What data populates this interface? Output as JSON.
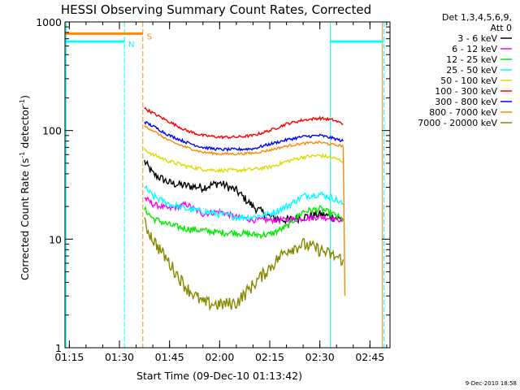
{
  "chart_data": {
    "type": "line",
    "title": "HESSI Observing Summary Count Rates, Corrected",
    "xlabel": "Start Time (09-Dec-10 01:13:42)",
    "ylabel_main": "Corrected Count Rate (s",
    "ylabel_sup1": "-1",
    "ylabel_mid": " detector",
    "ylabel_sup2": "-1",
    "ylabel_end": ")",
    "y_scale": "log",
    "ylim": [
      1,
      1000
    ],
    "xlim": [
      "01:13:42",
      "02:51:00"
    ],
    "x_ticks": [
      "01:15",
      "01:30",
      "01:45",
      "02:00",
      "02:15",
      "02:30",
      "02:45"
    ],
    "y_ticks": [
      "1",
      "10",
      "100",
      "1000"
    ],
    "legend_title_1": "Det 1,3,4,5,6,9,",
    "legend_title_2": "Att 0",
    "legend_position": "right",
    "timestamp": "9-Dec-2010 18:58",
    "series": [
      {
        "name": "3 - 6 keV",
        "color": "#000000",
        "points": [
          [
            "01:37:30",
            52
          ],
          [
            "01:40:00",
            40
          ],
          [
            "01:45:00",
            33
          ],
          [
            "01:50:00",
            31
          ],
          [
            "01:55:00",
            30
          ],
          [
            "02:00:00",
            33
          ],
          [
            "02:05:00",
            28
          ],
          [
            "02:10:00",
            20
          ],
          [
            "02:15:00",
            16
          ],
          [
            "02:20:00",
            15
          ],
          [
            "02:25:00",
            16
          ],
          [
            "02:30:00",
            17
          ],
          [
            "02:34:00",
            16
          ],
          [
            "02:37:00",
            15
          ]
        ]
      },
      {
        "name": "6 - 12 keV",
        "color": "#ff00ff",
        "points": [
          [
            "01:37:30",
            24
          ],
          [
            "01:40:00",
            21
          ],
          [
            "01:45:00",
            19
          ],
          [
            "01:50:00",
            21
          ],
          [
            "01:55:00",
            17
          ],
          [
            "02:00:00",
            18
          ],
          [
            "02:05:00",
            16
          ],
          [
            "02:10:00",
            15
          ],
          [
            "02:15:00",
            15
          ],
          [
            "02:20:00",
            15
          ],
          [
            "02:25:00",
            15.5
          ],
          [
            "02:30:00",
            16
          ],
          [
            "02:34:00",
            15.5
          ],
          [
            "02:37:00",
            15
          ]
        ]
      },
      {
        "name": "12 - 25 keV",
        "color": "#00ee00",
        "points": [
          [
            "01:37:30",
            19
          ],
          [
            "01:40:00",
            15.5
          ],
          [
            "01:45:00",
            13.5
          ],
          [
            "01:50:00",
            12.5
          ],
          [
            "01:55:00",
            12
          ],
          [
            "02:00:00",
            11.5
          ],
          [
            "02:05:00",
            11.5
          ],
          [
            "02:10:00",
            11
          ],
          [
            "02:15:00",
            11
          ],
          [
            "02:20:00",
            13
          ],
          [
            "02:25:00",
            18
          ],
          [
            "02:30:00",
            19
          ],
          [
            "02:34:00",
            17
          ],
          [
            "02:37:00",
            15
          ]
        ]
      },
      {
        "name": "25 - 50 keV",
        "color": "#00ffff",
        "points": [
          [
            "01:37:30",
            30
          ],
          [
            "01:40:00",
            25
          ],
          [
            "01:45:00",
            21
          ],
          [
            "01:50:00",
            19
          ],
          [
            "01:55:00",
            18
          ],
          [
            "02:00:00",
            17
          ],
          [
            "02:05:00",
            16
          ],
          [
            "02:10:00",
            16
          ],
          [
            "02:15:00",
            17
          ],
          [
            "02:20:00",
            20
          ],
          [
            "02:25:00",
            25
          ],
          [
            "02:30:00",
            26
          ],
          [
            "02:34:00",
            24
          ],
          [
            "02:37:00",
            21
          ]
        ]
      },
      {
        "name": "50 - 100 keV",
        "color": "#dddd00",
        "points": [
          [
            "01:37:30",
            67
          ],
          [
            "01:40:00",
            60
          ],
          [
            "01:45:00",
            52
          ],
          [
            "01:50:00",
            47
          ],
          [
            "01:55:00",
            44
          ],
          [
            "02:00:00",
            43
          ],
          [
            "02:05:00",
            43
          ],
          [
            "02:10:00",
            44
          ],
          [
            "02:15:00",
            46
          ],
          [
            "02:20:00",
            52
          ],
          [
            "02:25:00",
            57
          ],
          [
            "02:30:00",
            59
          ],
          [
            "02:34:00",
            56
          ],
          [
            "02:37:00",
            52
          ]
        ]
      },
      {
        "name": "100 - 300 keV",
        "color": "#ff0000",
        "points": [
          [
            "01:37:30",
            160
          ],
          [
            "01:40:00",
            145
          ],
          [
            "01:45:00",
            120
          ],
          [
            "01:50:00",
            100
          ],
          [
            "01:55:00",
            90
          ],
          [
            "02:00:00",
            87
          ],
          [
            "02:05:00",
            87
          ],
          [
            "02:10:00",
            90
          ],
          [
            "02:15:00",
            100
          ],
          [
            "02:20:00",
            115
          ],
          [
            "02:25:00",
            125
          ],
          [
            "02:30:00",
            130
          ],
          [
            "02:34:00",
            125
          ],
          [
            "02:37:00",
            115
          ]
        ]
      },
      {
        "name": "300 - 800 keV",
        "color": "#0000ff",
        "points": [
          [
            "01:37:30",
            120
          ],
          [
            "01:40:00",
            110
          ],
          [
            "01:45:00",
            90
          ],
          [
            "01:50:00",
            78
          ],
          [
            "01:55:00",
            70
          ],
          [
            "02:00:00",
            67
          ],
          [
            "02:05:00",
            67
          ],
          [
            "02:10:00",
            68
          ],
          [
            "02:15:00",
            75
          ],
          [
            "02:20:00",
            82
          ],
          [
            "02:25:00",
            88
          ],
          [
            "02:30:00",
            90
          ],
          [
            "02:34:00",
            85
          ],
          [
            "02:37:00",
            80
          ]
        ]
      },
      {
        "name": "800 - 7000 keV",
        "color": "#ff8800",
        "points": [
          [
            "01:37:30",
            110
          ],
          [
            "01:40:00",
            100
          ],
          [
            "01:45:00",
            80
          ],
          [
            "01:50:00",
            70
          ],
          [
            "01:55:00",
            63
          ],
          [
            "02:00:00",
            61
          ],
          [
            "02:05:00",
            61
          ],
          [
            "02:10:00",
            62
          ],
          [
            "02:15:00",
            66
          ],
          [
            "02:20:00",
            72
          ],
          [
            "02:25:00",
            76
          ],
          [
            "02:30:00",
            78
          ],
          [
            "02:34:00",
            74
          ],
          [
            "02:37:00",
            72
          ],
          [
            "02:37:30",
            3
          ]
        ]
      },
      {
        "name": "7000 - 20000 keV",
        "color": "#888800",
        "points": [
          [
            "01:37:30",
            14
          ],
          [
            "01:40:00",
            10
          ],
          [
            "01:45:00",
            6
          ],
          [
            "01:50:00",
            3.6
          ],
          [
            "01:55:00",
            2.6
          ],
          [
            "02:00:00",
            2.5
          ],
          [
            "02:05:00",
            2.6
          ],
          [
            "02:10:00",
            3.8
          ],
          [
            "02:15:00",
            5.5
          ],
          [
            "02:20:00",
            8
          ],
          [
            "02:25:00",
            9
          ],
          [
            "02:30:00",
            8
          ],
          [
            "02:34:00",
            7
          ],
          [
            "02:37:00",
            6.5
          ]
        ]
      }
    ],
    "flags": [
      {
        "name": "S",
        "color": "#ff8800",
        "start": "01:13:42",
        "end": "01:37:00",
        "level": 780
      },
      {
        "name": "N",
        "color": "#00ffff",
        "start": "01:13:42",
        "end": "01:31:30",
        "level": 660
      },
      {
        "name": "",
        "color": "#00ffff",
        "start": "02:33:10",
        "end": "02:49:00",
        "level": 660
      }
    ],
    "vertical_markers": [
      {
        "time": "01:14:00",
        "color": "#00ffff",
        "style": "solid"
      },
      {
        "time": "01:31:30",
        "color": "#00ffff",
        "style": "dashed"
      },
      {
        "time": "01:37:00",
        "color": "#ff8800",
        "style": "dashed"
      },
      {
        "time": "02:33:10",
        "color": "#00ffff",
        "style": "solid"
      },
      {
        "time": "02:48:40",
        "color": "#ff8800",
        "style": "solid"
      },
      {
        "time": "02:49:10",
        "color": "#00ffff",
        "style": "dashed"
      }
    ],
    "grid": false
  }
}
